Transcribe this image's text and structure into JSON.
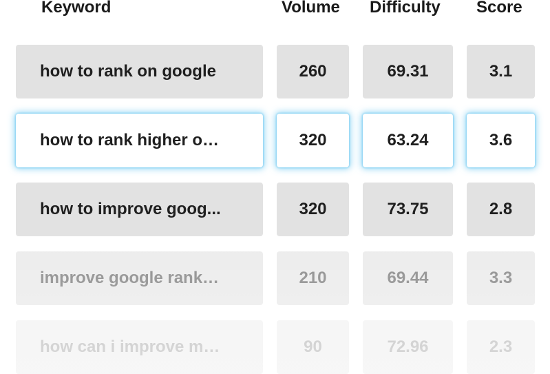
{
  "columns": {
    "keyword": "Keyword",
    "volume": "Volume",
    "difficulty": "Difficulty",
    "score": "Score"
  },
  "rows": [
    {
      "keyword": "how to rank on google",
      "volume": "260",
      "difficulty": "69.31",
      "score": "3.1"
    },
    {
      "keyword": "how to rank higher o…",
      "volume": "320",
      "difficulty": "63.24",
      "score": "3.6"
    },
    {
      "keyword": "how to improve goog...",
      "volume": "320",
      "difficulty": "73.75",
      "score": "2.8"
    },
    {
      "keyword": "improve google rank…",
      "volume": "210",
      "difficulty": "69.44",
      "score": "3.3"
    },
    {
      "keyword": "how can i improve m…",
      "volume": "90",
      "difficulty": "72.96",
      "score": "2.3"
    }
  ],
  "colors": {
    "selection_glow": "#6ec8f0",
    "row_bg": "#e2e2e2"
  }
}
